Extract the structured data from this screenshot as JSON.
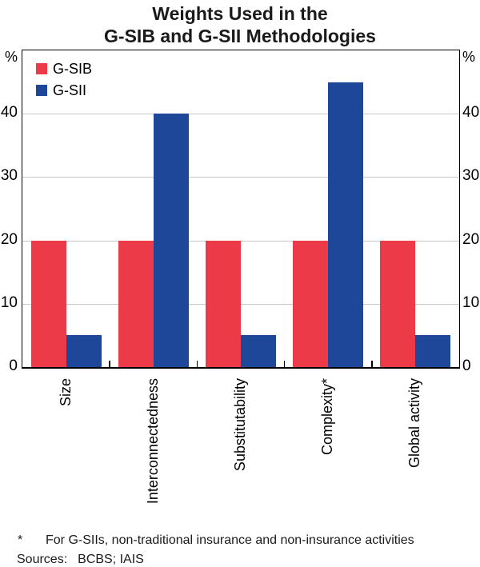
{
  "title": {
    "line1": "Weights Used in the",
    "line2": "G-SIB and G-SII Methodologies"
  },
  "chart_data": {
    "type": "bar",
    "title": "Weights Used in the G-SIB and G-SII Methodologies",
    "categories": [
      "Size",
      "Interconnectedness",
      "Substitutability",
      "Complexity*",
      "Global activity"
    ],
    "series": [
      {
        "name": "G-SIB",
        "color": "#ed3a49",
        "values": [
          20,
          20,
          20,
          20,
          20
        ]
      },
      {
        "name": "G-SII",
        "color": "#1e4699",
        "values": [
          5,
          40,
          5,
          45,
          5
        ]
      }
    ],
    "ylim": [
      0,
      50
    ],
    "yticks": [
      0,
      10,
      20,
      30,
      40
    ],
    "y_unit": "%",
    "grid": true,
    "gridline_color": "#c8c8c8",
    "legend_position": "top-left",
    "xlabel": "",
    "ylabel": ""
  },
  "footnote": {
    "marker": "*",
    "text": "For G-SIIs, non-traditional insurance and non-insurance activities",
    "sources_label": "Sources:",
    "sources_value": "BCBS; IAIS"
  }
}
